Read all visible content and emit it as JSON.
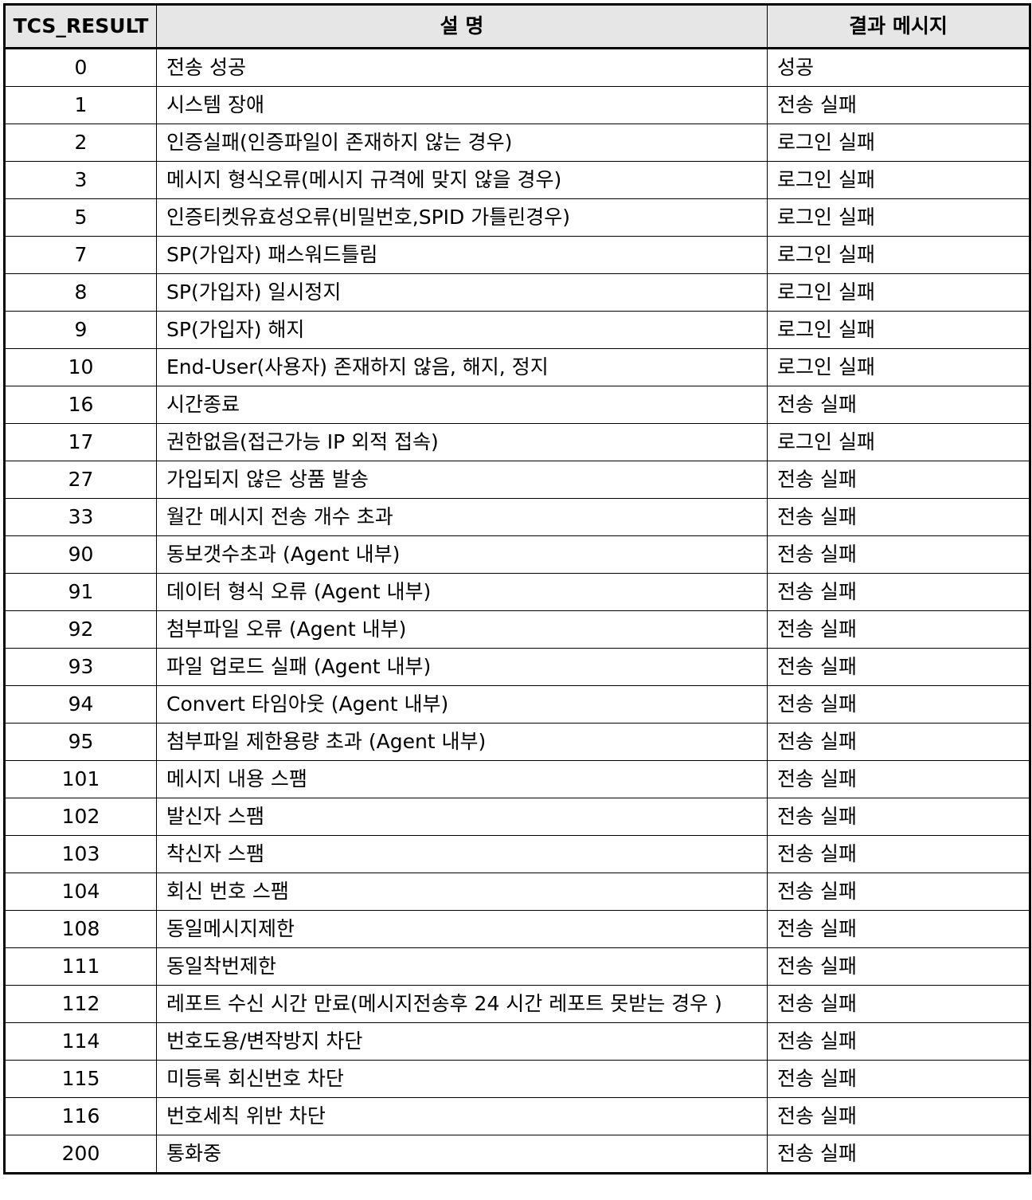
{
  "table": {
    "headers": {
      "code": "TCS_RESULT",
      "description": "설 명",
      "message": "결과 메시지"
    },
    "rows": [
      {
        "code": "0",
        "description": "전송 성공",
        "message": "성공"
      },
      {
        "code": "1",
        "description": "시스템 장애",
        "message": "전송 실패"
      },
      {
        "code": "2",
        "description": "인증실패(인증파일이 존재하지 않는 경우)",
        "message": "로그인 실패"
      },
      {
        "code": "3",
        "description": "메시지 형식오류(메시지 규격에 맞지 않을 경우)",
        "message": "로그인 실패"
      },
      {
        "code": "5",
        "description": "인증티켓유효성오류(비밀번호,SPID 가틀린경우)",
        "message": "로그인 실패"
      },
      {
        "code": "7",
        "description": "SP(가입자) 패스워드틀림",
        "message": "로그인 실패"
      },
      {
        "code": "8",
        "description": "SP(가입자) 일시정지",
        "message": "로그인 실패"
      },
      {
        "code": "9",
        "description": "SP(가입자) 해지",
        "message": "로그인 실패"
      },
      {
        "code": "10",
        "description": "End-User(사용자) 존재하지 않음, 해지, 정지",
        "message": "로그인 실패"
      },
      {
        "code": "16",
        "description": "시간종료",
        "message": "전송 실패"
      },
      {
        "code": "17",
        "description": "권한없음(접근가능 IP 외적 접속)",
        "message": "로그인 실패"
      },
      {
        "code": "27",
        "description": "가입되지 않은 상품 발송",
        "message": "전송 실패"
      },
      {
        "code": "33",
        "description": "월간 메시지 전송 개수 초과",
        "message": "전송 실패"
      },
      {
        "code": "90",
        "description": "동보갯수초과 (Agent 내부)",
        "message": "전송 실패"
      },
      {
        "code": "91",
        "description": "데이터 형식 오류 (Agent 내부)",
        "message": "전송 실패"
      },
      {
        "code": "92",
        "description": "첨부파일 오류 (Agent 내부)",
        "message": "전송 실패"
      },
      {
        "code": "93",
        "description": "파일 업로드 실패 (Agent 내부)",
        "message": "전송 실패"
      },
      {
        "code": "94",
        "description": "Convert 타임아웃 (Agent 내부)",
        "message": "전송 실패"
      },
      {
        "code": "95",
        "description": "첨부파일 제한용량 초과 (Agent 내부)",
        "message": "전송 실패"
      },
      {
        "code": "101",
        "description": "메시지 내용 스팸",
        "message": "전송 실패"
      },
      {
        "code": "102",
        "description": "발신자 스팸",
        "message": "전송 실패"
      },
      {
        "code": "103",
        "description": "착신자 스팸",
        "message": "전송 실패"
      },
      {
        "code": "104",
        "description": "회신 번호 스팸",
        "message": "전송 실패"
      },
      {
        "code": "108",
        "description": "동일메시지제한",
        "message": "전송 실패"
      },
      {
        "code": "111",
        "description": "동일착번제한",
        "message": "전송 실패"
      },
      {
        "code": "112",
        "description": "레포트 수신 시간 만료(메시지전송후 24 시간 레포트 못받는 경우 )",
        "message": "전송 실패"
      },
      {
        "code": "114",
        "description": "번호도용/변작방지 차단",
        "message": "전송 실패"
      },
      {
        "code": "115",
        "description": "미등록 회신번호 차단",
        "message": "전송 실패"
      },
      {
        "code": "116",
        "description": "번호세칙 위반 차단",
        "message": "전송 실패"
      },
      {
        "code": "200",
        "description": "통화중",
        "message": "전송 실패"
      }
    ]
  }
}
